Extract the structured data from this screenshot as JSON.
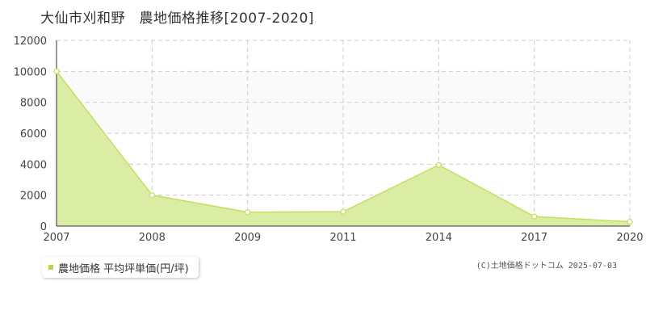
{
  "title": "大仙市刈和野　農地価格推移[2007-2020]",
  "legend_label": "農地価格 平均坪単価(円/坪)",
  "credit": "(C)土地価格ドットコム 2025-07-03",
  "colors": {
    "line": "#c2e05a",
    "fill": "#d9eca0",
    "marker_fill": "#ffffff",
    "grid": "#cccccc",
    "legend_marker": "#b5d93d"
  },
  "chart_data": {
    "type": "area",
    "x": [
      "2007",
      "2008",
      "2009",
      "2011",
      "2014",
      "2017",
      "2020"
    ],
    "series": [
      {
        "name": "農地価格 平均坪単価(円/坪)",
        "values": [
          10000,
          2000,
          900,
          930,
          3950,
          620,
          280
        ]
      }
    ],
    "y_ticks": [
      "0",
      "2000",
      "4000",
      "6000",
      "8000",
      "10000",
      "12000"
    ],
    "ylim": [
      0,
      12000
    ],
    "grid": true,
    "legend_position": "bottom-left"
  }
}
